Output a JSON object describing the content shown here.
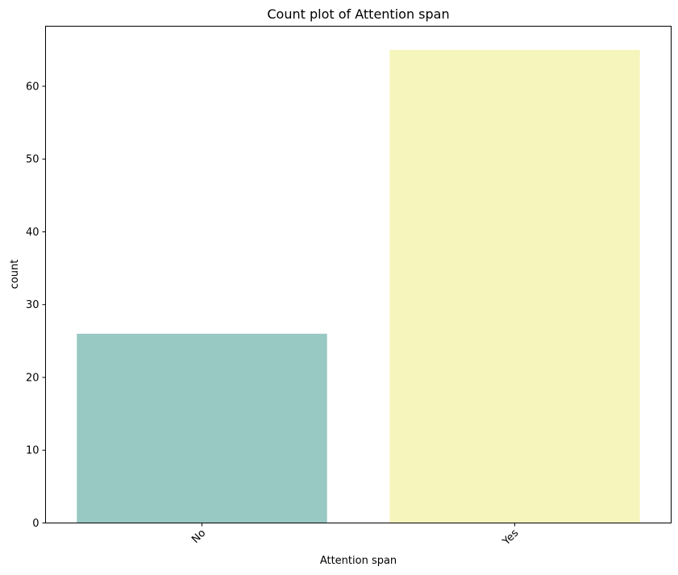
{
  "chart_data": {
    "type": "bar",
    "title": "Count plot of Attention span",
    "xlabel": "Attention span",
    "ylabel": "count",
    "categories": [
      "No",
      "Yes"
    ],
    "values": [
      26,
      65
    ],
    "ylim": [
      0,
      68.25
    ],
    "yticks": [
      0,
      10,
      20,
      30,
      40,
      50,
      60
    ],
    "grid": false,
    "legend": "none",
    "colors": [
      "#98c9c2",
      "#f5f5bc"
    ]
  }
}
